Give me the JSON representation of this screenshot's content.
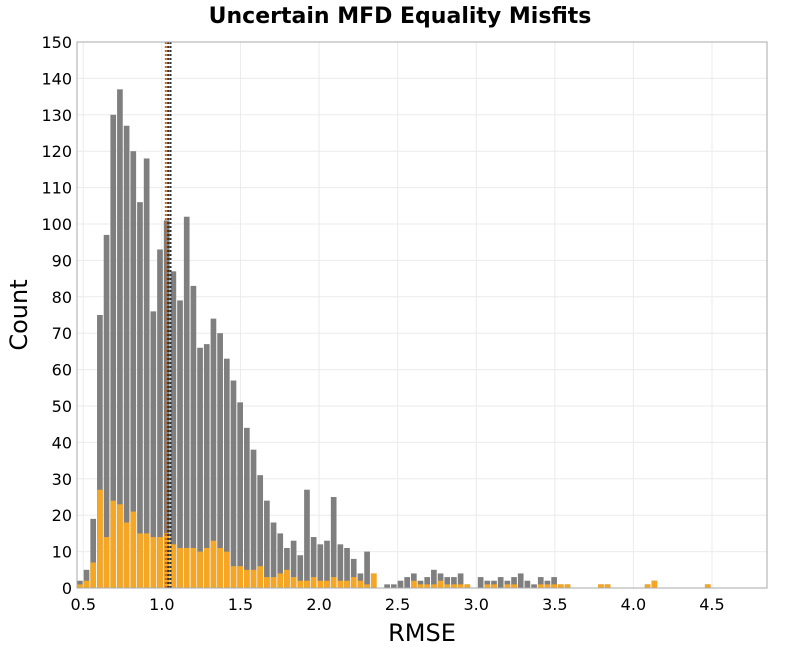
{
  "chart_data": {
    "type": "bar",
    "title": "Uncertain MFD Equality Misfits",
    "xlabel": "RMSE",
    "ylabel": "Count",
    "xlim": [
      0.46,
      4.85
    ],
    "ylim": [
      0,
      150
    ],
    "x_ticks": [
      "0.5",
      "1.0",
      "1.5",
      "2.0",
      "2.5",
      "3.0",
      "3.5",
      "4.0",
      "4.5"
    ],
    "y_ticks": [
      "0",
      "10",
      "20",
      "30",
      "40",
      "50",
      "60",
      "70",
      "80",
      "90",
      "100",
      "110",
      "120",
      "130",
      "140",
      "150"
    ],
    "grid": true,
    "bin_start": 0.46,
    "bin_width": 0.0425,
    "series": [
      {
        "color": "#7f7f7f",
        "values": [
          2,
          5,
          19,
          75,
          97,
          130,
          137,
          127,
          120,
          106,
          118,
          76,
          93,
          101,
          87,
          79,
          102,
          83,
          66,
          67,
          74,
          70,
          63,
          57,
          51,
          44,
          38,
          31,
          24,
          18,
          15,
          11,
          13,
          9,
          27,
          14,
          12,
          13,
          25,
          12,
          11,
          8,
          4,
          10,
          4,
          0,
          1,
          1,
          2,
          3,
          4,
          2,
          3,
          5,
          4,
          3,
          3,
          4,
          1,
          0,
          3,
          2,
          2,
          3,
          2,
          3,
          4,
          2,
          1,
          3,
          2,
          3,
          1,
          1,
          0,
          0,
          0,
          0,
          1,
          1,
          0,
          0,
          0,
          0,
          0,
          1,
          2,
          0,
          0,
          0,
          0,
          0,
          0,
          0,
          1
        ]
      },
      {
        "color": "#f5a623",
        "values": [
          1,
          2,
          7,
          27,
          14,
          24,
          23,
          18,
          21,
          15,
          15,
          14,
          14,
          15,
          12,
          11,
          11,
          11,
          10,
          11,
          13,
          11,
          10,
          6,
          6,
          5,
          5,
          6,
          3,
          3,
          4,
          5,
          3,
          2,
          2,
          3,
          2,
          2,
          3,
          2,
          2,
          3,
          2,
          1,
          4,
          0,
          0,
          0,
          0,
          0,
          2,
          1,
          1,
          1,
          2,
          1,
          1,
          1,
          1,
          0,
          0,
          1,
          1,
          0,
          1,
          1,
          0,
          0,
          0,
          1,
          1,
          1,
          1,
          1,
          0,
          0,
          0,
          0,
          1,
          1,
          0,
          0,
          0,
          0,
          0,
          1,
          2,
          0,
          0,
          0,
          0,
          0,
          0,
          0,
          1
        ]
      }
    ],
    "vlines": [
      {
        "x": 1.025,
        "color": "#c8641e",
        "style": "dotted"
      },
      {
        "x": 1.04,
        "color": "#333333",
        "style": "dotted"
      },
      {
        "x": 1.055,
        "color": "#333333",
        "style": "dotted"
      }
    ]
  }
}
